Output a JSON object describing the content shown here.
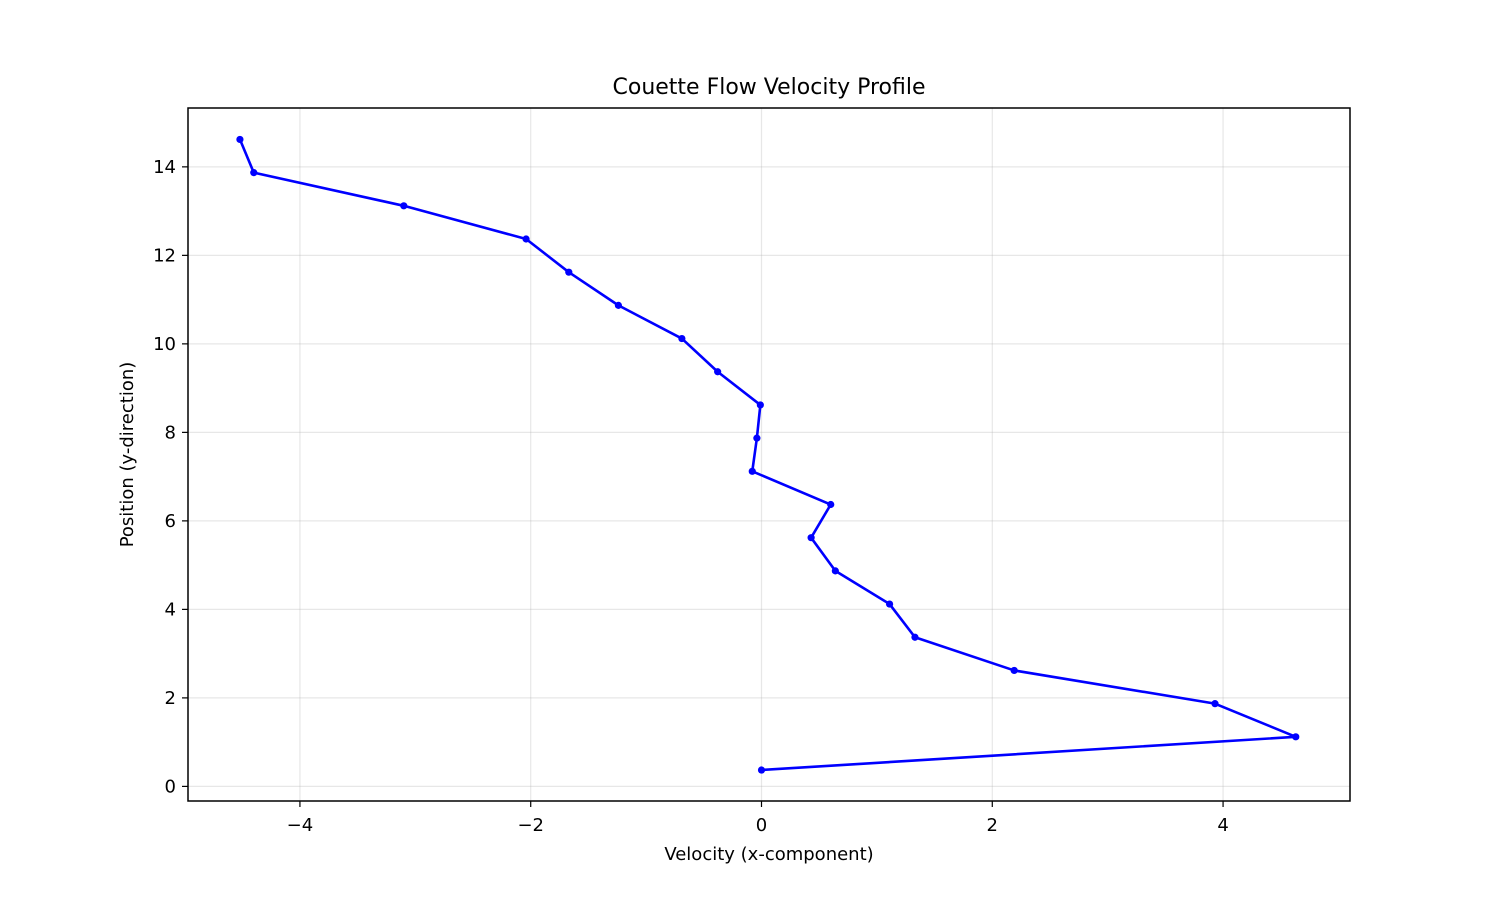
{
  "chart_data": {
    "type": "line",
    "title": "Couette Flow Velocity Profile",
    "xlabel": "Velocity (x-component)",
    "ylabel": "Position (y-direction)",
    "xlim": [
      -4.97,
      5.1
    ],
    "ylim": [
      -0.33,
      15.33
    ],
    "xticks": [
      -4,
      -2,
      0,
      2,
      4
    ],
    "yticks": [
      0,
      2,
      4,
      6,
      8,
      10,
      12,
      14
    ],
    "grid": true,
    "line_color": "#0000ff",
    "series": [
      {
        "marker": "circle",
        "points": [
          {
            "x": 0.0,
            "y": 0.37
          },
          {
            "x": 4.63,
            "y": 1.12
          },
          {
            "x": 3.93,
            "y": 1.87
          },
          {
            "x": 2.19,
            "y": 2.62
          },
          {
            "x": 1.33,
            "y": 3.37
          },
          {
            "x": 1.11,
            "y": 4.12
          },
          {
            "x": 0.64,
            "y": 4.87
          },
          {
            "x": 0.43,
            "y": 5.62
          },
          {
            "x": 0.6,
            "y": 6.37
          },
          {
            "x": -0.08,
            "y": 7.12
          },
          {
            "x": -0.04,
            "y": 7.87
          },
          {
            "x": -0.01,
            "y": 8.62
          },
          {
            "x": -0.38,
            "y": 9.37
          },
          {
            "x": -0.69,
            "y": 10.12
          },
          {
            "x": -1.24,
            "y": 10.87
          },
          {
            "x": -1.67,
            "y": 11.62
          },
          {
            "x": -2.04,
            "y": 12.37
          },
          {
            "x": -3.1,
            "y": 13.12
          },
          {
            "x": -4.4,
            "y": 13.87
          },
          {
            "x": -4.52,
            "y": 14.62
          }
        ]
      }
    ]
  }
}
